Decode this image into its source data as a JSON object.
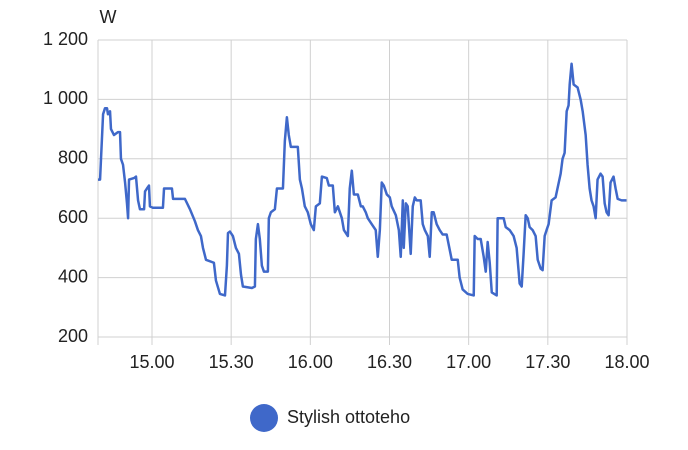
{
  "chart_data": {
    "type": "line",
    "y_label": "W",
    "x": [
      14.659,
      14.672,
      14.678,
      14.691,
      14.703,
      14.716,
      14.722,
      14.735,
      14.741,
      14.76,
      14.785,
      14.798,
      14.804,
      14.817,
      14.83,
      14.842,
      14.849,
      14.855,
      14.886,
      14.899,
      14.912,
      14.924,
      14.95,
      14.956,
      14.968,
      14.981,
      14.987,
      15.006,
      15.069,
      15.076,
      15.126,
      15.133,
      15.208,
      15.24,
      15.271,
      15.29,
      15.309,
      15.322,
      15.341,
      15.391,
      15.404,
      15.429,
      15.461,
      15.473,
      15.48,
      15.492,
      15.511,
      15.53,
      15.549,
      15.562,
      15.574,
      15.631,
      15.65,
      15.656,
      15.669,
      15.681,
      15.694,
      15.707,
      15.732,
      15.738,
      15.751,
      15.776,
      15.789,
      15.827,
      15.839,
      15.852,
      15.864,
      15.877,
      15.921,
      15.934,
      15.947,
      15.965,
      15.984,
      16.003,
      16.022,
      16.035,
      16.06,
      16.073,
      16.104,
      16.117,
      16.142,
      16.155,
      16.174,
      16.199,
      16.212,
      16.237,
      16.249,
      16.262,
      16.275,
      16.3,
      16.319,
      16.331,
      16.35,
      16.363,
      16.388,
      16.413,
      16.426,
      16.439,
      16.451,
      16.464,
      16.483,
      16.502,
      16.514,
      16.54,
      16.559,
      16.571,
      16.584,
      16.59,
      16.603,
      16.615,
      16.634,
      16.647,
      16.66,
      16.672,
      16.697,
      16.71,
      16.723,
      16.742,
      16.754,
      16.767,
      16.779,
      16.798,
      16.817,
      16.836,
      16.861,
      16.893,
      16.931,
      16.943,
      16.962,
      16.994,
      17.032,
      17.038,
      17.057,
      17.076,
      17.095,
      17.108,
      17.12,
      17.133,
      17.146,
      17.177,
      17.183,
      17.221,
      17.234,
      17.259,
      17.284,
      17.303,
      17.322,
      17.335,
      17.347,
      17.36,
      17.373,
      17.385,
      17.404,
      17.423,
      17.436,
      17.455,
      17.467,
      17.48,
      17.492,
      17.505,
      17.524,
      17.549,
      17.581,
      17.593,
      17.606,
      17.619,
      17.631,
      17.638,
      17.65,
      17.663,
      17.688,
      17.707,
      17.72,
      17.739,
      17.751,
      17.764,
      17.776,
      17.789,
      17.802,
      17.814,
      17.833,
      17.846,
      17.859,
      17.871,
      17.884,
      17.896,
      17.915,
      17.928,
      17.941,
      17.966,
      17.997
    ],
    "series": [
      {
        "name": "Stylish ottoteho",
        "color": "#3f68c9",
        "values": [
          730,
          730,
          800,
          950,
          970,
          970,
          950,
          960,
          900,
          880,
          890,
          890,
          800,
          780,
          720,
          650,
          600,
          730,
          735,
          740,
          660,
          630,
          630,
          690,
          700,
          710,
          640,
          635,
          635,
          700,
          700,
          665,
          665,
          630,
          590,
          560,
          540,
          500,
          460,
          450,
          390,
          345,
          340,
          440,
          550,
          555,
          540,
          500,
          480,
          410,
          370,
          365,
          370,
          530,
          580,
          530,
          440,
          420,
          420,
          600,
          620,
          630,
          700,
          700,
          860,
          940,
          880,
          840,
          840,
          730,
          700,
          640,
          620,
          580,
          560,
          640,
          650,
          740,
          735,
          710,
          710,
          620,
          640,
          600,
          560,
          540,
          700,
          760,
          680,
          680,
          640,
          640,
          620,
          600,
          580,
          560,
          470,
          560,
          720,
          710,
          680,
          670,
          640,
          610,
          560,
          470,
          660,
          500,
          650,
          640,
          480,
          640,
          670,
          660,
          660,
          580,
          560,
          540,
          470,
          620,
          620,
          580,
          560,
          545,
          545,
          460,
          460,
          400,
          360,
          345,
          340,
          540,
          530,
          530,
          470,
          420,
          520,
          450,
          350,
          340,
          600,
          600,
          570,
          560,
          540,
          500,
          380,
          370,
          480,
          610,
          600,
          570,
          560,
          540,
          460,
          430,
          425,
          540,
          560,
          580,
          660,
          670,
          750,
          800,
          820,
          960,
          980,
          1050,
          1120,
          1050,
          1040,
          1000,
          960,
          880,
          780,
          700,
          660,
          640,
          600,
          730,
          750,
          740,
          650,
          620,
          610,
          720,
          740,
          700,
          665,
          660,
          660
        ]
      }
    ],
    "xlim": [
      14.659,
      18
    ],
    "xticks": [
      {
        "value": 15,
        "label": "15.00"
      },
      {
        "value": 15.5,
        "label": "15.30"
      },
      {
        "value": 16,
        "label": "16.00"
      },
      {
        "value": 16.5,
        "label": "16.30"
      },
      {
        "value": 17,
        "label": "17.00"
      },
      {
        "value": 17.5,
        "label": "17.30"
      },
      {
        "value": 18,
        "label": "18.00"
      }
    ],
    "ylim": [
      200,
      1200
    ],
    "yticks": [
      200,
      400,
      600,
      800,
      {
        "value": 1000,
        "label": "1 000"
      },
      {
        "value": 1200,
        "label": "1 200"
      }
    ],
    "grid": true
  }
}
